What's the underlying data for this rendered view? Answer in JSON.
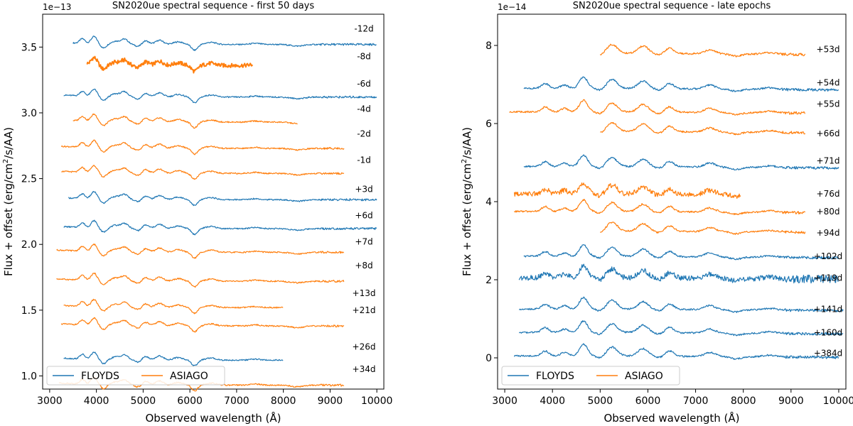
{
  "chart_data": [
    {
      "type": "line",
      "title": "SN2020ue spectral sequence - first 50 days",
      "xlabel": "Observed wavelength (Å)",
      "ylabel_main": "Flux + offset (erg/cm",
      "ylabel_sup": "2",
      "ylabel_tail": "/s/AA)",
      "offset_text": "1e−13",
      "xlim": [
        2850,
        10150
      ],
      "ylim": [
        0.9,
        3.75
      ],
      "xticks": [
        3000,
        4000,
        5000,
        6000,
        7000,
        8000,
        9000,
        10000
      ],
      "yticks": [
        1.0,
        1.5,
        2.0,
        2.5,
        3.0,
        3.5
      ],
      "ytick_labels": [
        "1.0",
        "1.5",
        "2.0",
        "2.5",
        "3.0",
        "3.5"
      ],
      "legend": [
        {
          "name": "FLOYDS",
          "color": "#1f77b4"
        },
        {
          "name": "ASIAGO",
          "color": "#ff7f0e"
        }
      ],
      "legend_position": "lower-left",
      "series": [
        {
          "label": "-12d",
          "instrument": "FLOYDS",
          "x_start": 3500,
          "x_end": 10000,
          "level": 3.52,
          "label_y": 3.64
        },
        {
          "label": "-8d",
          "instrument": "ASIAGO",
          "x_start": 3800,
          "x_end": 7350,
          "level": 3.36,
          "label_y": 3.43
        },
        {
          "label": "-6d",
          "instrument": "FLOYDS",
          "x_start": 3300,
          "x_end": 10000,
          "level": 3.12,
          "label_y": 3.22
        },
        {
          "label": "-4d",
          "instrument": "ASIAGO",
          "x_start": 3500,
          "x_end": 8300,
          "level": 2.93,
          "label_y": 3.03
        },
        {
          "label": "-2d",
          "instrument": "ASIAGO",
          "x_start": 3250,
          "x_end": 9300,
          "level": 2.73,
          "label_y": 2.84
        },
        {
          "label": "-1d",
          "instrument": "ASIAGO",
          "x_start": 3250,
          "x_end": 9300,
          "level": 2.54,
          "label_y": 2.64
        },
        {
          "label": "+3d",
          "instrument": "FLOYDS",
          "x_start": 3400,
          "x_end": 10000,
          "level": 2.34,
          "label_y": 2.42
        },
        {
          "label": "+6d",
          "instrument": "FLOYDS",
          "x_start": 3300,
          "x_end": 10000,
          "level": 2.12,
          "label_y": 2.22
        },
        {
          "label": "+7d",
          "instrument": "ASIAGO",
          "x_start": 3150,
          "x_end": 9300,
          "level": 1.94,
          "label_y": 2.02
        },
        {
          "label": "+8d",
          "instrument": "ASIAGO",
          "x_start": 3150,
          "x_end": 9300,
          "level": 1.72,
          "label_y": 1.84
        },
        {
          "label": "+13d",
          "instrument": "ASIAGO",
          "x_start": 3300,
          "x_end": 8000,
          "level": 1.52,
          "label_y": 1.63
        },
        {
          "label": "+21d",
          "instrument": "ASIAGO",
          "x_start": 3250,
          "x_end": 9300,
          "level": 1.38,
          "label_y": 1.5
        },
        {
          "label": "+26d",
          "instrument": "FLOYDS",
          "x_start": 3300,
          "x_end": 8000,
          "level": 1.12,
          "label_y": 1.22
        },
        {
          "label": "+34d",
          "instrument": "ASIAGO",
          "x_start": 3200,
          "x_end": 9300,
          "level": 0.93,
          "label_y": 1.05
        }
      ]
    },
    {
      "type": "line",
      "title": "SN2020ue spectral sequence - late epochs",
      "xlabel": "Observed wavelength (Å)",
      "ylabel_main": "Flux + offset (erg/cm",
      "ylabel_sup": "2",
      "ylabel_tail": "/s/AA)",
      "offset_text": "1e−14",
      "xlim": [
        2850,
        10150
      ],
      "ylim": [
        -0.8,
        8.8
      ],
      "xticks": [
        3000,
        4000,
        5000,
        6000,
        7000,
        8000,
        9000,
        10000
      ],
      "yticks": [
        0,
        2,
        4,
        6,
        8
      ],
      "ytick_labels": [
        "0",
        "2",
        "4",
        "6",
        "8"
      ],
      "legend": [
        {
          "name": "FLOYDS",
          "color": "#1f77b4"
        },
        {
          "name": "ASIAGO",
          "color": "#ff7f0e"
        }
      ],
      "legend_position": "lower-left",
      "series": [
        {
          "label": "+53d",
          "instrument": "ASIAGO",
          "x_start": 5000,
          "x_end": 9300,
          "level": 7.8,
          "label_y": 7.9
        },
        {
          "label": "+54d",
          "instrument": "FLOYDS",
          "x_start": 3400,
          "x_end": 10000,
          "level": 6.9,
          "label_y": 7.05
        },
        {
          "label": "+55d",
          "instrument": "ASIAGO",
          "x_start": 3100,
          "x_end": 9300,
          "level": 6.3,
          "label_y": 6.5
        },
        {
          "label": "+66d",
          "instrument": "ASIAGO",
          "x_start": 5000,
          "x_end": 9300,
          "level": 5.8,
          "label_y": 5.75
        },
        {
          "label": "+71d",
          "instrument": "FLOYDS",
          "x_start": 3400,
          "x_end": 10000,
          "level": 4.9,
          "label_y": 5.05
        },
        {
          "label": "+76d",
          "instrument": "ASIAGO",
          "x_start": 3200,
          "x_end": 7950,
          "level": 4.2,
          "label_y": 4.2
        },
        {
          "label": "+80d",
          "instrument": "ASIAGO",
          "x_start": 3200,
          "x_end": 9300,
          "level": 3.75,
          "label_y": 3.75
        },
        {
          "label": "+94d",
          "instrument": "ASIAGO",
          "x_start": 5000,
          "x_end": 9300,
          "level": 3.25,
          "label_y": 3.2
        },
        {
          "label": "+102d",
          "instrument": "FLOYDS",
          "x_start": 3400,
          "x_end": 10000,
          "level": 2.6,
          "label_y": 2.6
        },
        {
          "label": "+119d",
          "instrument": "FLOYDS",
          "x_start": 3300,
          "x_end": 10000,
          "level": 2.05,
          "label_y": 2.05
        },
        {
          "label": "+141d",
          "instrument": "FLOYDS",
          "x_start": 3300,
          "x_end": 10100,
          "level": 1.25,
          "label_y": 1.25
        },
        {
          "label": "+160d",
          "instrument": "FLOYDS",
          "x_start": 3300,
          "x_end": 10100,
          "level": 0.65,
          "label_y": 0.65
        },
        {
          "label": "+384d",
          "instrument": "FLOYDS",
          "x_start": 3200,
          "x_end": 10000,
          "level": 0.05,
          "label_y": 0.12
        }
      ]
    }
  ]
}
